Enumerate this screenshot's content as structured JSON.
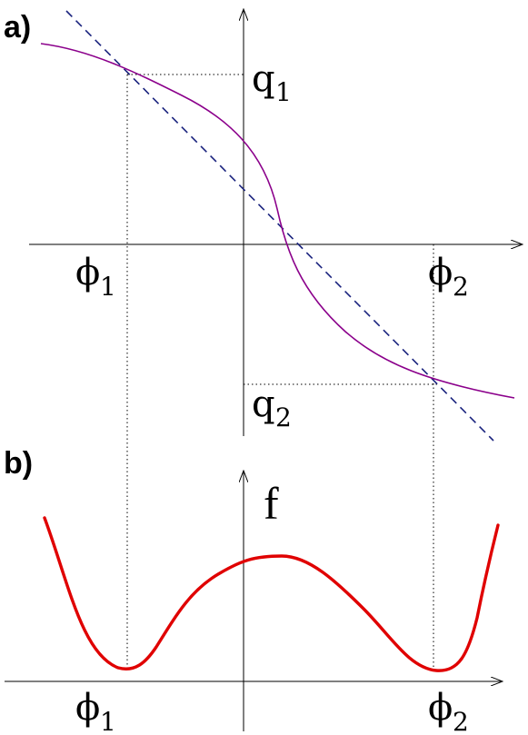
{
  "panel_a": {
    "label": "a)",
    "q1": {
      "base": "q",
      "sub": "1"
    },
    "q2": {
      "base": "q",
      "sub": "2"
    },
    "phi1": {
      "base": "ϕ",
      "sub": "1"
    },
    "phi2": {
      "base": "ϕ",
      "sub": "2"
    },
    "curve_color": "#8b008b",
    "line_color": "#1a237e"
  },
  "panel_b": {
    "label": "b)",
    "f_label": "f",
    "phi1": {
      "base": "ϕ",
      "sub": "1"
    },
    "phi2": {
      "base": "ϕ",
      "sub": "2"
    },
    "curve_color": "#e00000"
  }
}
